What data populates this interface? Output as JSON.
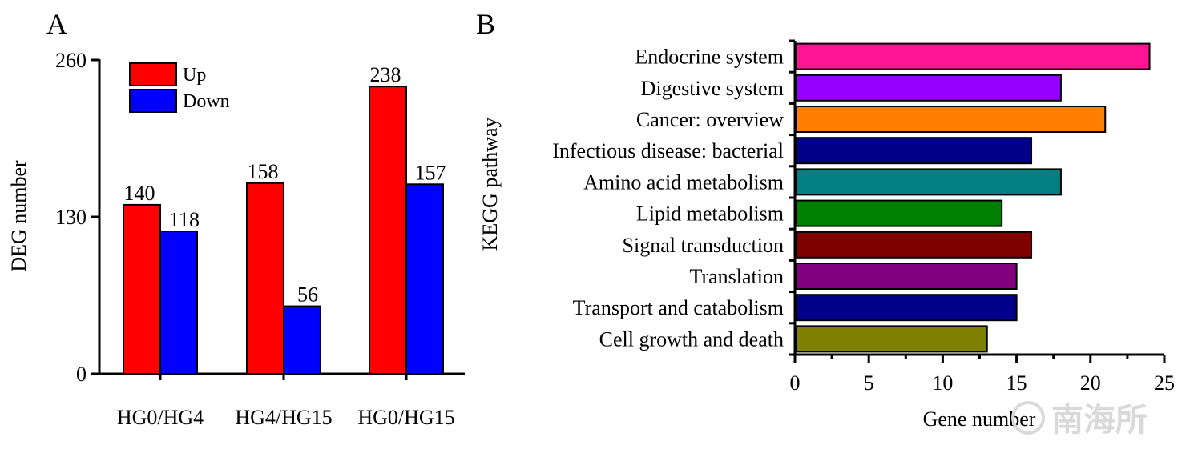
{
  "chart_data": [
    {
      "type": "bar",
      "panel": "A",
      "categories": [
        "HG0/HG4",
        "HG4/HG15",
        "HG0/HG15"
      ],
      "series": [
        {
          "name": "Up",
          "color": "#ff0000",
          "values": [
            140,
            158,
            238
          ]
        },
        {
          "name": "Down",
          "color": "#0000ff",
          "values": [
            118,
            56,
            157
          ]
        }
      ],
      "title": "",
      "xlabel": "",
      "ylabel": "DEG number",
      "ylim": [
        0,
        260
      ],
      "yticks": [
        "0",
        "130",
        "260"
      ],
      "legend": "top-left"
    },
    {
      "type": "bar",
      "orientation": "horizontal",
      "panel": "B",
      "categories": [
        "Endocrine system",
        "Digestive system",
        "Cancer: overview",
        "Infectious disease: bacterial",
        "Amino acid metabolism",
        "Lipid metabolism",
        "Signal transduction",
        "Translation",
        "Transport and catabolism",
        "Cell growth and death"
      ],
      "values": [
        24,
        18,
        21,
        16,
        18,
        14,
        16,
        15,
        15,
        13
      ],
      "colors": [
        "#ff1493",
        "#9400ff",
        "#ff8000",
        "#00008b",
        "#008080",
        "#008000",
        "#800000",
        "#800080",
        "#00008b",
        "#808000"
      ],
      "title": "",
      "xlabel": "Gene number",
      "ylabel": "KEGG pathway",
      "xlim": [
        0,
        25
      ],
      "xticks": [
        "0",
        "5",
        "10",
        "15",
        "20",
        "25"
      ]
    }
  ],
  "watermark": {
    "text": "南海所"
  }
}
